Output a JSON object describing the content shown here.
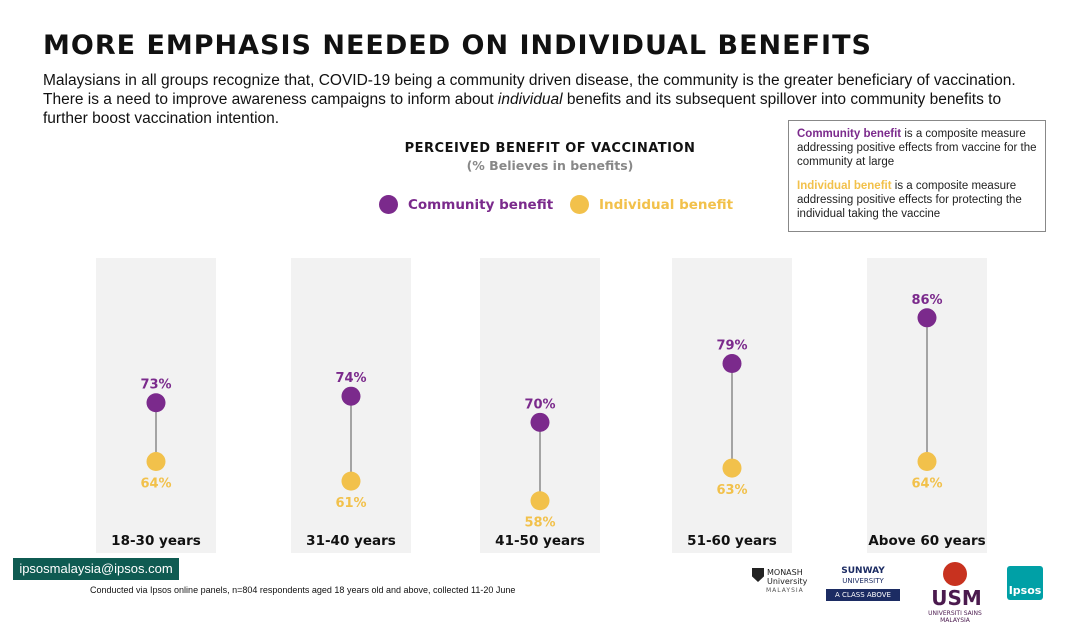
{
  "header": {
    "title": "MORE EMPHASIS NEEDED ON INDIVIDUAL BENEFITS",
    "subtitle_part1": "Malaysians in all groups recognize that, COVID-19 being a community driven disease, the community is the greater beneficiary of vaccination. There is a need to improve awareness campaigns to inform about ",
    "subtitle_emphasis": "individual",
    "subtitle_part2": " benefits and its subsequent spillover into community benefits to further boost vaccination intention."
  },
  "note": {
    "community_term": "Community benefit",
    "community_text": " is a composite measure addressing positive effects from vaccine for the community at large",
    "individual_term": "Individual benefit",
    "individual_text": " is a composite measure addressing positive effects for protecting the individual taking the vaccine"
  },
  "colors": {
    "community": "#7b2a8c",
    "individual": "#f2c14b",
    "panel": "#f2f2f2",
    "connector": "#555555",
    "email_bg": "#0f5b52"
  },
  "chart_data": {
    "type": "dumbbell",
    "title": "PERCEIVED BENEFIT OF VACCINATION",
    "subtitle": "(% Believes in benefits)",
    "legend_position": "top-center",
    "categories": [
      "18-30 years",
      "31-40 years",
      "41-50 years",
      "51-60 years",
      "Above 60 years"
    ],
    "series": [
      {
        "name": "Community benefit",
        "color": "#7b2a8c",
        "values": [
          73,
          74,
          70,
          79,
          86
        ],
        "labels": [
          "73%",
          "74%",
          "70%",
          "79%",
          "86%"
        ]
      },
      {
        "name": "Individual benefit",
        "color": "#f2c14b",
        "values": [
          64,
          61,
          58,
          63,
          64
        ],
        "labels": [
          "64%",
          "61%",
          "58%",
          "63%",
          "64%"
        ]
      }
    ],
    "ylim": [
      50,
      95
    ]
  },
  "footer": {
    "email": "ipsosmalaysia@ipsos.com",
    "footnote": "Conducted via Ipsos online panels, n=804 respondents aged 18 years old and above, collected 11-20 June",
    "logos": {
      "monash_line1": "MONASH",
      "monash_line2": "University",
      "monash_line3": "MALAYSIA",
      "sunway_line1": "SUNWAY",
      "sunway_line2": "UNIVERSITY",
      "sunway_tag": "A CLASS ABOVE",
      "usm_word": "USM",
      "usm_sub": "UNIVERSITI SAINS MALAYSIA",
      "ipsos": "Ipsos"
    }
  }
}
